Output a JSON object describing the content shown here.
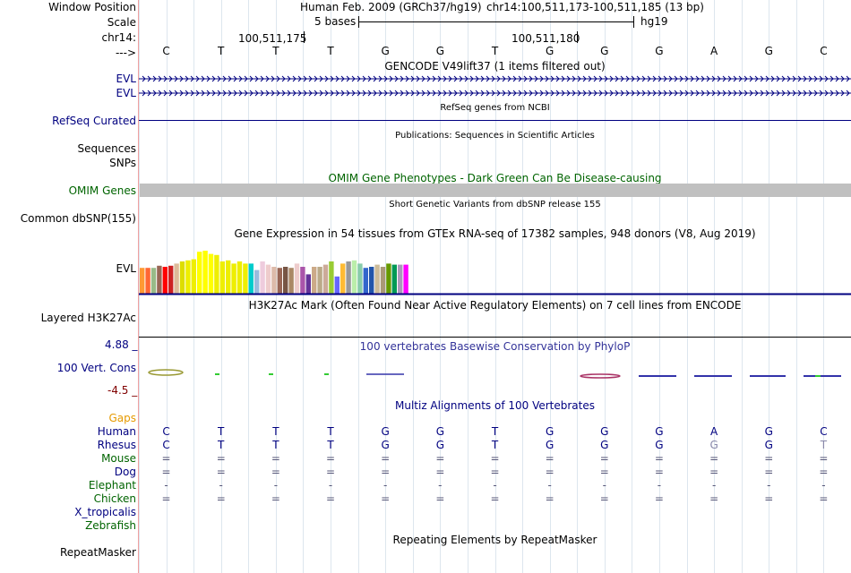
{
  "header": {
    "window_position_label": "Window Position",
    "scale_label": "Scale",
    "chrom_label": "chr14:",
    "arrow_label": "--->",
    "assembly": "Human Feb. 2009 (GRCh37/hg19)",
    "position": "chr14:100,511,173-100,511,185 (13 bp)",
    "scale_bases": "5 bases",
    "scale_db": "hg19",
    "coord1": "100,511,175",
    "coord2": "100,511,180"
  },
  "bases": [
    "C",
    "T",
    "T",
    "T",
    "G",
    "G",
    "T",
    "G",
    "G",
    "G",
    "A",
    "G",
    "C"
  ],
  "tracks": {
    "gencode_title": "GENCODE V49lift37 (1 items filtered out)",
    "evl1": "EVL",
    "evl2": "EVL",
    "refseq_title": "RefSeq genes from NCBI",
    "refseq_label": "RefSeq Curated",
    "pubs_title": "Publications: Sequences in Scientific Articles",
    "sequences_label": "Sequences",
    "snps_label": "SNPs",
    "omim_title": "OMIM Gene Phenotypes - Dark Green Can Be Disease-causing",
    "omim_label": "OMIM Genes",
    "dbsnp_title": "Short Genetic Variants from dbSNP release 155",
    "dbsnp_label": "Common dbSNP(155)",
    "gtex_title": "Gene Expression in 54 tissues from GTEx RNA-seq of 17382 samples, 948 donors (V8, Aug 2019)",
    "gtex_label": "EVL",
    "h3k27ac_title": "H3K27Ac Mark (Often Found Near Active Regulatory Elements) on 7 cell lines from ENCODE",
    "h3k27ac_label": "Layered H3K27Ac",
    "phylop_title": "100 vertebrates Basewise Conservation by PhyloP",
    "phylop_label": "100 Vert. Cons",
    "phylop_max": "4.88 _",
    "phylop_min": "-4.5 _",
    "multiz_title": "Multiz Alignments of 100 Vertebrates",
    "gaps_label": "Gaps",
    "repeat_title": "Repeating Elements by RepeatMasker",
    "repeat_label": "RepeatMasker"
  },
  "alignment": [
    {
      "species": "Human",
      "row": [
        "C",
        "T",
        "T",
        "T",
        "G",
        "G",
        "T",
        "G",
        "G",
        "G",
        "A",
        "G",
        "C"
      ]
    },
    {
      "species": "Rhesus",
      "row": [
        "C",
        "T",
        "T",
        "T",
        "G",
        "G",
        "T",
        "G",
        "G",
        "G",
        "G",
        "G",
        "T"
      ]
    },
    {
      "species": "Mouse",
      "row": [
        "=",
        "=",
        "=",
        "=",
        "=",
        "=",
        "=",
        "=",
        "=",
        "=",
        "=",
        "=",
        "="
      ]
    },
    {
      "species": "Dog",
      "row": [
        "=",
        "=",
        "=",
        "=",
        "=",
        "=",
        "=",
        "=",
        "=",
        "=",
        "=",
        "=",
        "="
      ]
    },
    {
      "species": "Elephant",
      "row": [
        "-",
        "-",
        "-",
        "-",
        "-",
        "-",
        "-",
        "-",
        "-",
        "-",
        "-",
        "-",
        "-"
      ]
    },
    {
      "species": "Chicken",
      "row": [
        "=",
        "=",
        "=",
        "=",
        "=",
        "=",
        "=",
        "=",
        "=",
        "=",
        "=",
        "=",
        "="
      ]
    },
    {
      "species": "X_tropicalis",
      "row": []
    },
    {
      "species": "Zebrafish",
      "row": []
    }
  ],
  "colors": {
    "omim_bar": "#c0c0c0",
    "gtex_bars": [
      "#ff9933",
      "#ff6633",
      "#99bb88",
      "#996655",
      "#ff0000",
      "#cc2222",
      "#ddbb99",
      "#dddd00",
      "#eeee00",
      "#eeee00",
      "#ffff00",
      "#ffff00",
      "#ffff00",
      "#eeee00",
      "#eeee00",
      "#eeee00",
      "#eeee00",
      "#eeee00",
      "#eeee00",
      "#00cccc",
      "#99bbdd",
      "#eeccdd",
      "#eecccc",
      "#ddbbaa",
      "#996655",
      "#775544",
      "#aa8866",
      "#eecccc",
      "#aa55aa",
      "#663399",
      "#ccaa88",
      "#bbaa88",
      "#ccaa99",
      "#99cc33",
      "#6666ff",
      "#ffbb33",
      "#999999",
      "#bbeeaa",
      "#88ccaa",
      "#3366cc",
      "#2255aa",
      "#ccbb99",
      "#aa9977",
      "#669900",
      "#009955",
      "#aa99bb",
      "#ff00ff"
    ],
    "gtex_heights": [
      0.48,
      0.48,
      0.48,
      0.52,
      0.5,
      0.52,
      0.56,
      0.6,
      0.62,
      0.64,
      0.78,
      0.8,
      0.74,
      0.72,
      0.6,
      0.62,
      0.56,
      0.6,
      0.56,
      0.56,
      0.44,
      0.6,
      0.54,
      0.5,
      0.48,
      0.5,
      0.48,
      0.56,
      0.5,
      0.36,
      0.5,
      0.5,
      0.54,
      0.6,
      0.32,
      0.56,
      0.6,
      0.62,
      0.56,
      0.48,
      0.5,
      0.54,
      0.5,
      0.56,
      0.54,
      0.54,
      0.54
    ]
  }
}
